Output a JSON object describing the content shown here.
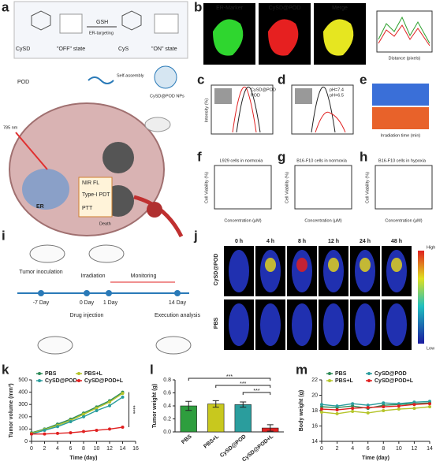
{
  "figure": {
    "panel_labels": [
      "a",
      "b",
      "c",
      "d",
      "e",
      "f",
      "g",
      "h",
      "i",
      "j",
      "k",
      "l",
      "m"
    ],
    "a": {
      "cysd": "CySD",
      "off": "\"OFF\" state",
      "gsh": "GSH",
      "er_targeting": "ER-targeting",
      "cys": "CyS",
      "on": "\"ON\" state",
      "pod": "POD",
      "self_assembly": "Self-assembly",
      "nps": "CySD@POD NPs",
      "laser": "785 nm",
      "er": "ER",
      "nir": "NIR FL",
      "pdt": "Type-I PDT",
      "ptt": "PTT",
      "death": "Death"
    },
    "b": {
      "titles": [
        "ER-Marker",
        "CySD@POD",
        "Merge"
      ],
      "xlabel": "Distance (pixels)"
    },
    "c": {
      "legend": [
        "CySD@POD",
        "POD"
      ],
      "ylabel": "Intensity (%)"
    },
    "d": {
      "legend": [
        "pH=7.4",
        "pH=6.5"
      ]
    },
    "e": {
      "xlabel": "Irradiation time (min)"
    },
    "f": {
      "title": "L929 cells in normoxia",
      "ylabel": "Cell Viability (%)",
      "xlabel": "Concentration (μM)"
    },
    "g": {
      "title": "B16-F10 cells in normoxia",
      "ylabel": "Cell Viability (%)",
      "xlabel": "Concentration (μM)"
    },
    "h": {
      "title": "B16-F10 cells in hypoxia",
      "ylabel": "Cell Viability (%)",
      "xlabel": "Concentration (μM)"
    },
    "i": {
      "inoculation": "Tumor inoculation",
      "irradiation": "Irradiation",
      "monitoring": "Monitoring",
      "days": [
        "-7 Day",
        "0 Day",
        "1 Day",
        "14 Day"
      ],
      "injection": "Drug injection",
      "execution": "Execution analysis"
    },
    "j": {
      "times": [
        "0 h",
        "4 h",
        "8 h",
        "12 h",
        "24 h",
        "48 h"
      ],
      "rows": [
        "CySD@POD",
        "PBS"
      ],
      "high": "High",
      "low": "Low"
    }
  },
  "chart_data": [
    {
      "type": "line",
      "ylabel": "Tumor volume (mm³)",
      "xlabel": "Time (day)",
      "x": [
        0,
        2,
        4,
        6,
        8,
        10,
        12,
        14
      ],
      "xlim": [
        0,
        16
      ],
      "xticks": [
        0,
        2,
        4,
        6,
        8,
        10,
        12,
        14,
        16
      ],
      "ylim": [
        0,
        500
      ],
      "yticks": [
        0,
        100,
        200,
        300,
        400,
        500
      ],
      "legend": "upper left",
      "annotation": "****",
      "series": [
        {
          "name": "PBS",
          "color": "#2e8b57",
          "values": [
            70,
            100,
            140,
            180,
            230,
            280,
            330,
            400
          ]
        },
        {
          "name": "PBS+L",
          "color": "#b5c42a",
          "values": [
            65,
            95,
            130,
            170,
            220,
            270,
            320,
            390
          ]
        },
        {
          "name": "CySD@POD",
          "color": "#2a9d9d",
          "values": [
            60,
            90,
            120,
            160,
            200,
            250,
            290,
            360
          ]
        },
        {
          "name": "CySD@POD+L",
          "color": "#e02020",
          "values": [
            60,
            60,
            65,
            70,
            80,
            90,
            100,
            115
          ]
        }
      ]
    },
    {
      "type": "bar",
      "ylabel": "Tumor weight (g)",
      "categories": [
        "PBS",
        "PBS+L",
        "CySD@POD",
        "CySD@POD+L"
      ],
      "values": [
        0.4,
        0.43,
        0.42,
        0.06
      ],
      "errors": [
        0.07,
        0.05,
        0.04,
        0.05
      ],
      "colors": [
        "#2e9e3e",
        "#c8c81e",
        "#2a9d9d",
        "#e02020"
      ],
      "ylim": [
        0,
        0.8
      ],
      "yticks": [
        {
          "value": 0,
          "label": "0.0"
        },
        0.2,
        0.4,
        0.6,
        0.8
      ],
      "annotations": [
        "***",
        "***",
        "***"
      ]
    },
    {
      "type": "line",
      "ylabel": "Body weight (g)",
      "xlabel": "Time (day)",
      "x": [
        0,
        2,
        4,
        6,
        8,
        10,
        12,
        14
      ],
      "xlim": [
        0,
        14
      ],
      "xticks": [
        0,
        2,
        4,
        6,
        8,
        10,
        12,
        14
      ],
      "ylim": [
        14,
        22
      ],
      "yticks": [
        14,
        16,
        18,
        20,
        22
      ],
      "legend": "upper left",
      "series": [
        {
          "name": "PBS",
          "color": "#2e8b57",
          "values": [
            18.5,
            18.4,
            18.6,
            18.3,
            18.7,
            18.8,
            18.9,
            19
          ]
        },
        {
          "name": "CySD@POD",
          "color": "#2a9d9d",
          "values": [
            18.8,
            18.6,
            18.9,
            18.7,
            19,
            18.9,
            19.1,
            19.2
          ]
        },
        {
          "name": "PBS+L",
          "color": "#b5c42a",
          "values": [
            17.8,
            17.6,
            17.9,
            17.7,
            18,
            18.2,
            18.3,
            18.5
          ]
        },
        {
          "name": "CySD@POD+L",
          "color": "#e02020",
          "values": [
            18.2,
            18.1,
            18.3,
            18.4,
            18.5,
            18.6,
            18.8,
            18.9
          ]
        }
      ]
    }
  ]
}
